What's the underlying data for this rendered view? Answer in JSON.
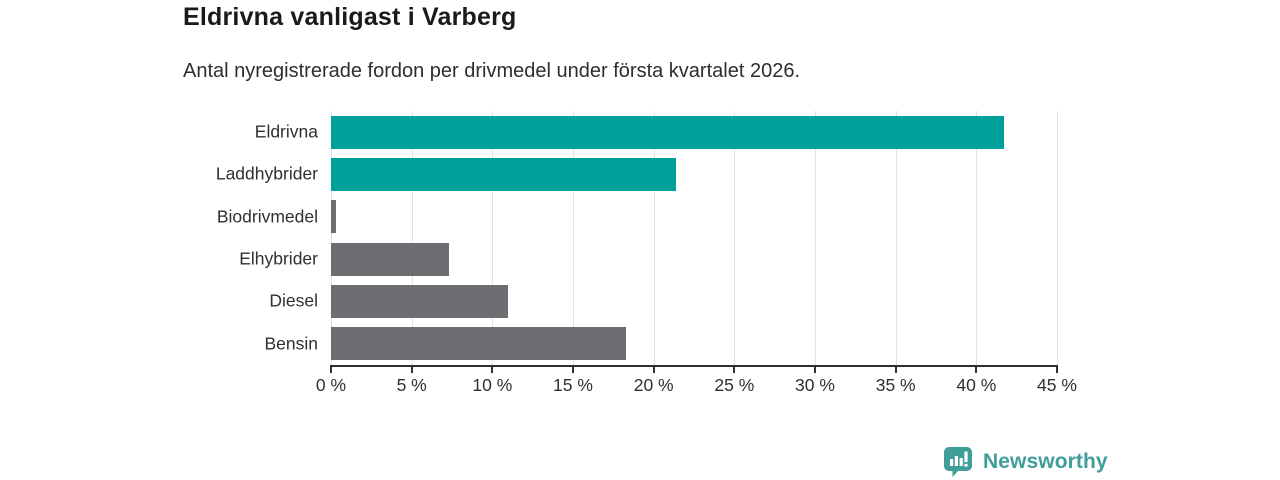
{
  "header": {
    "title": "Eldrivna vanligast i Varberg",
    "subtitle": "Antal nyregistrerade fordon per drivmedel under första kvartalet 2026."
  },
  "chart_data": {
    "type": "bar",
    "orientation": "horizontal",
    "title": "Eldrivna vanligast i Varberg",
    "subtitle": "Antal nyregistrerade fordon per drivmedel under första kvartalet 2026.",
    "categories": [
      "Eldrivna",
      "Laddhybrider",
      "Biodrivmedel",
      "Elhybrider",
      "Diesel",
      "Bensin"
    ],
    "values": [
      41.7,
      21.4,
      0.3,
      7.3,
      11.0,
      18.3
    ],
    "bar_colors": [
      "#00a19a",
      "#00a19a",
      "#6d6d72",
      "#6d6d72",
      "#6d6d72",
      "#6d6d72"
    ],
    "unit": "%",
    "xlabel": "",
    "ylabel": "",
    "xlim": [
      0,
      45
    ],
    "x_ticks": [
      0,
      5,
      10,
      15,
      20,
      25,
      30,
      35,
      40,
      45
    ],
    "x_tick_labels": [
      "0 %",
      "5 %",
      "10 %",
      "15 %",
      "20 %",
      "25 %",
      "30 %",
      "35 %",
      "40 %",
      "45 %"
    ],
    "grid": "vertical",
    "legend": "none"
  },
  "footer": {
    "brand": "Newsworthy",
    "logo_icon": "newsworthy-speech-bubble-bar-chart"
  },
  "colors": {
    "accent_teal": "#00a19a",
    "neutral_gray": "#6d6d72",
    "axis": "#2f2f2f",
    "gridline": "#e2e2e2",
    "title_text": "#1a1a1a",
    "body_text": "#303030",
    "brand_teal": "#3f9e99"
  }
}
